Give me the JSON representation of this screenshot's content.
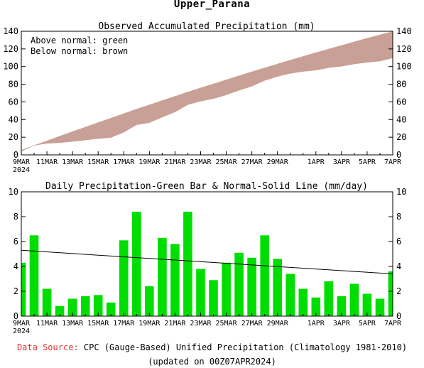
{
  "page": {
    "title": "Upper_Parana",
    "source_label": "Data Source:",
    "source_text": "CPC (Gauge-Based) Unified Precipitation (Climatology 1981-2010)",
    "updated_text": "(updated on 00Z07APR2024)"
  },
  "chart_data": [
    {
      "type": "area",
      "title": "Observed Accumulated Precipitation (mm)",
      "annotations": [
        "Above normal: green",
        "Below normal: brown"
      ],
      "x_tick_labels": [
        "9MAR",
        "11MAR",
        "13MAR",
        "15MAR",
        "17MAR",
        "19MAR",
        "21MAR",
        "23MAR",
        "25MAR",
        "27MAR",
        "29MAR",
        "1APR",
        "3APR",
        "5APR",
        "7APR"
      ],
      "x_start_sublabel": "2024",
      "ylim": [
        0,
        140
      ],
      "y_ticks": [
        0,
        20,
        40,
        60,
        80,
        100,
        120,
        140
      ],
      "colors": {
        "below_normal": "#c8a096",
        "above_normal": "#00cc00"
      },
      "dates": [
        "9MAR",
        "10MAR",
        "11MAR",
        "12MAR",
        "13MAR",
        "14MAR",
        "15MAR",
        "16MAR",
        "17MAR",
        "18MAR",
        "19MAR",
        "20MAR",
        "21MAR",
        "22MAR",
        "23MAR",
        "24MAR",
        "25MAR",
        "26MAR",
        "27MAR",
        "28MAR",
        "29MAR",
        "30MAR",
        "31MAR",
        "1APR",
        "2APR",
        "3APR",
        "4APR",
        "5APR",
        "6APR",
        "7APR"
      ],
      "series": [
        {
          "name": "Observed",
          "values": [
            4.3,
            10.8,
            13.0,
            13.8,
            15.2,
            16.8,
            18.5,
            19.6,
            25.7,
            34.1,
            36.5,
            42.8,
            48.6,
            57.0,
            60.8,
            63.7,
            68.0,
            73.1,
            77.8,
            84.3,
            88.9,
            92.3,
            94.5,
            96.0,
            98.8,
            100.4,
            103.0,
            104.8,
            106.2,
            109.8
          ]
        },
        {
          "name": "Normal",
          "values": [
            5.3,
            10.6,
            15.8,
            21.1,
            26.3,
            31.4,
            36.5,
            41.6,
            46.7,
            51.7,
            56.6,
            61.5,
            66.3,
            71.1,
            75.8,
            80.4,
            85.0,
            89.6,
            94.1,
            98.5,
            102.9,
            107.2,
            111.5,
            115.7,
            119.8,
            123.9,
            128.0,
            132.0,
            135.9,
            139.7
          ]
        }
      ]
    },
    {
      "type": "bar",
      "title": "Daily Precipitation-Green Bar & Normal-Solid Line (mm/day)",
      "x_tick_labels": [
        "9MAR",
        "11MAR",
        "13MAR",
        "15MAR",
        "17MAR",
        "19MAR",
        "21MAR",
        "23MAR",
        "25MAR",
        "27MAR",
        "29MAR",
        "1APR",
        "3APR",
        "5APR",
        "7APR"
      ],
      "x_start_sublabel": "2024",
      "ylim": [
        0,
        10
      ],
      "y_ticks": [
        0,
        2,
        4,
        6,
        8,
        10
      ],
      "colors": {
        "bar": "#00dd00",
        "normal_line": "#000000"
      },
      "categories": [
        "9MAR",
        "10MAR",
        "11MAR",
        "12MAR",
        "13MAR",
        "14MAR",
        "15MAR",
        "16MAR",
        "17MAR",
        "18MAR",
        "19MAR",
        "20MAR",
        "21MAR",
        "22MAR",
        "23MAR",
        "24MAR",
        "25MAR",
        "26MAR",
        "27MAR",
        "28MAR",
        "29MAR",
        "30MAR",
        "31MAR",
        "1APR",
        "2APR",
        "3APR",
        "4APR",
        "5APR",
        "6APR",
        "7APR"
      ],
      "series": [
        {
          "name": "Daily Precipitation",
          "values": [
            4.3,
            6.5,
            2.2,
            0.8,
            1.4,
            1.6,
            1.7,
            1.1,
            6.1,
            8.4,
            2.4,
            6.3,
            5.8,
            8.4,
            3.8,
            2.9,
            4.3,
            5.1,
            4.7,
            6.5,
            4.6,
            3.4,
            2.2,
            1.5,
            2.8,
            1.6,
            2.6,
            1.8,
            1.4,
            3.6
          ]
        },
        {
          "name": "Normal",
          "x": [
            "9MAR",
            "7APR"
          ],
          "values": [
            5.3,
            3.4
          ]
        }
      ]
    }
  ]
}
